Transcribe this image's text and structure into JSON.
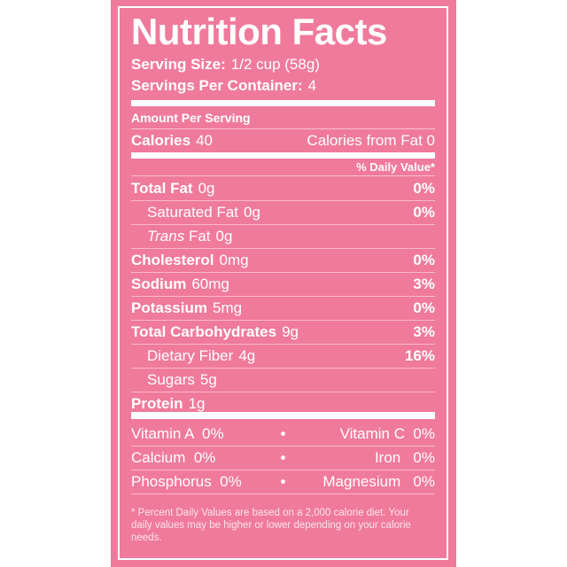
{
  "colors": {
    "background": "#f07a9c",
    "text": "#ffffff"
  },
  "title": "Nutrition Facts",
  "serving": {
    "size_label": "Serving Size:",
    "size_value": "1/2 cup (58g)",
    "per_container_label": "Servings Per Container:",
    "per_container_value": "4"
  },
  "amount_per_serving": "Amount Per Serving",
  "calories": {
    "label": "Calories",
    "value": "40",
    "from_fat_label": "Calories from Fat",
    "from_fat_value": "0"
  },
  "daily_value_header": "% Daily Value*",
  "nutrients": [
    {
      "label": "Total Fat",
      "amount": "0g",
      "dv": "0%"
    },
    {
      "label": "Saturated Fat",
      "amount": "0g",
      "dv": "0%"
    },
    {
      "label_italic": "Trans",
      "label": "Fat",
      "amount": "0g",
      "dv": ""
    },
    {
      "label": "Cholesterol",
      "amount": "0mg",
      "dv": "0%"
    },
    {
      "label": "Sodium",
      "amount": "60mg",
      "dv": "3%"
    },
    {
      "label": "Potassium",
      "amount": "5mg",
      "dv": "0%"
    },
    {
      "label": "Total Carbohydrates",
      "amount": "9g",
      "dv": "3%"
    },
    {
      "label": "Dietary Fiber",
      "amount": "4g",
      "dv": "16%"
    },
    {
      "label": "Sugars",
      "amount": "5g",
      "dv": ""
    },
    {
      "label": "Protein",
      "amount": "1g",
      "dv": ""
    }
  ],
  "vitamins": [
    {
      "left": "Vitamin A  0%",
      "right": "Vitamin C  0%"
    },
    {
      "left": "Calcium  0%",
      "right": "Iron   0%"
    },
    {
      "left": "Phosphorus  0%",
      "right": "Magnesium   0%"
    }
  ],
  "bullet": "•",
  "footnote": "* Percent Daily Values are based on a 2,000 calorie diet. Your daily values may be higher or lower depending on your calorie needs."
}
